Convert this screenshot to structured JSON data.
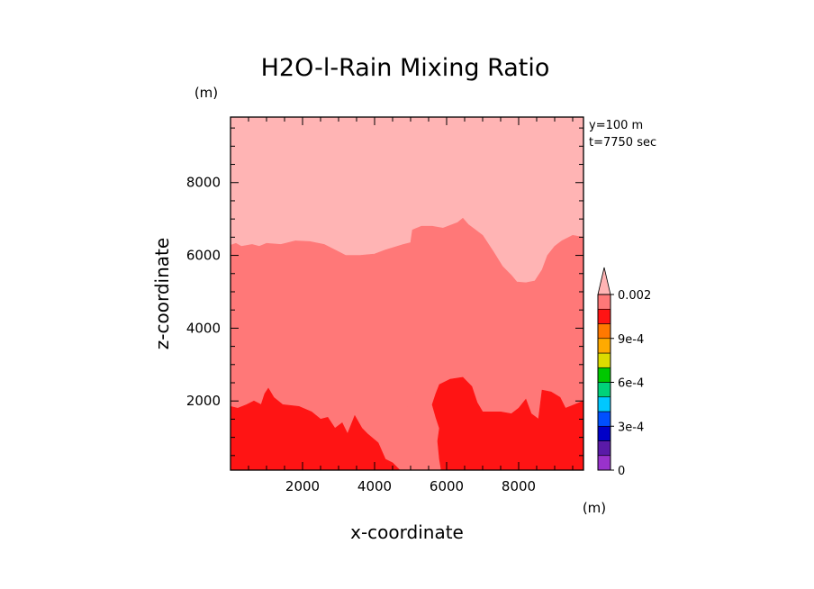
{
  "chart_data": {
    "type": "heatmap",
    "title": "H2O-l-Rain Mixing Ratio",
    "xlabel": "x-coordinate",
    "ylabel": "z-coordinate",
    "x_unit": "(m)",
    "y_unit": "(m)",
    "info": [
      "y=100 m",
      "t=7750 sec"
    ],
    "xlim": [
      0,
      9800
    ],
    "ylim": [
      100,
      9800
    ],
    "x_ticks": [
      2000,
      4000,
      6000,
      8000
    ],
    "y_ticks": [
      2000,
      4000,
      6000,
      8000
    ],
    "x_tick_labels": [
      "2000",
      "4000",
      "6000",
      "8000"
    ],
    "y_tick_labels": [
      "2000",
      "4000",
      "6000",
      "8000"
    ],
    "grid": false,
    "colorbar": {
      "position": "right",
      "levels": [
        0,
        0.0001,
        0.0002,
        0.0003,
        0.0004,
        0.0005,
        0.0006,
        0.0007,
        0.0008,
        0.0009,
        0.001,
        0.0015,
        0.002
      ],
      "colors": [
        "#9932cc",
        "#5a1aa8",
        "#0000c8",
        "#0050ff",
        "#00c8ff",
        "#00d27a",
        "#00c800",
        "#dcdc00",
        "#ffaa00",
        "#ff7800",
        "#ff1414",
        "#ff7878",
        "#ffb4b4"
      ],
      "tick_values": [
        0,
        0.0003,
        0.0006,
        0.0009,
        0.002
      ],
      "tick_labels": [
        "0",
        "3e-4",
        "6e-4",
        "9e-4",
        "0.002"
      ],
      "extend": "max"
    },
    "regions": [
      {
        "level": "> 0.002",
        "color": "#ffb4b4",
        "polygon": [
          [
            0,
            9800
          ],
          [
            9800,
            9800
          ],
          [
            9800,
            100
          ],
          [
            0,
            100
          ]
        ]
      },
      {
        "level": "0.0015 - 0.002",
        "color": "#ff7878",
        "polygon": [
          [
            0,
            6280
          ],
          [
            150,
            6330
          ],
          [
            300,
            6250
          ],
          [
            600,
            6300
          ],
          [
            800,
            6250
          ],
          [
            1000,
            6330
          ],
          [
            1400,
            6300
          ],
          [
            1800,
            6400
          ],
          [
            2200,
            6380
          ],
          [
            2600,
            6300
          ],
          [
            3000,
            6100
          ],
          [
            3200,
            6000
          ],
          [
            3600,
            6000
          ],
          [
            4000,
            6040
          ],
          [
            4300,
            6150
          ],
          [
            4800,
            6300
          ],
          [
            5000,
            6350
          ],
          [
            5050,
            6700
          ],
          [
            5300,
            6800
          ],
          [
            5600,
            6800
          ],
          [
            5900,
            6750
          ],
          [
            6300,
            6900
          ],
          [
            6450,
            7020
          ],
          [
            6600,
            6850
          ],
          [
            7000,
            6550
          ],
          [
            7300,
            6100
          ],
          [
            7550,
            5700
          ],
          [
            7800,
            5450
          ],
          [
            7950,
            5270
          ],
          [
            8200,
            5250
          ],
          [
            8450,
            5300
          ],
          [
            8650,
            5600
          ],
          [
            8800,
            6000
          ],
          [
            9000,
            6250
          ],
          [
            9200,
            6400
          ],
          [
            9500,
            6550
          ],
          [
            9800,
            6500
          ],
          [
            9800,
            100
          ],
          [
            0,
            100
          ]
        ]
      },
      {
        "level": "0.001 - 0.0015",
        "color": "#ff1414",
        "polygon": [
          [
            0,
            1850
          ],
          [
            200,
            1800
          ],
          [
            450,
            1900
          ],
          [
            650,
            2000
          ],
          [
            850,
            1900
          ],
          [
            950,
            2200
          ],
          [
            1050,
            2350
          ],
          [
            1200,
            2100
          ],
          [
            1450,
            1900
          ],
          [
            1900,
            1850
          ],
          [
            2250,
            1700
          ],
          [
            2500,
            1500
          ],
          [
            2700,
            1550
          ],
          [
            2900,
            1250
          ],
          [
            3100,
            1400
          ],
          [
            3250,
            1100
          ],
          [
            3450,
            1600
          ],
          [
            3650,
            1250
          ],
          [
            3800,
            1100
          ],
          [
            4100,
            850
          ],
          [
            4300,
            400
          ],
          [
            4500,
            300
          ],
          [
            4700,
            100
          ],
          [
            5850,
            100
          ],
          [
            5800,
            400
          ],
          [
            5750,
            900
          ],
          [
            5800,
            1250
          ],
          [
            5700,
            1550
          ],
          [
            5600,
            1900
          ],
          [
            5700,
            2200
          ],
          [
            5800,
            2450
          ],
          [
            6100,
            2600
          ],
          [
            6450,
            2650
          ],
          [
            6700,
            2400
          ],
          [
            6850,
            1950
          ],
          [
            7000,
            1700
          ],
          [
            7500,
            1700
          ],
          [
            7800,
            1650
          ],
          [
            8000,
            1800
          ],
          [
            8200,
            2050
          ],
          [
            8350,
            1650
          ],
          [
            8550,
            1500
          ],
          [
            8650,
            2300
          ],
          [
            8900,
            2250
          ],
          [
            9150,
            2100
          ],
          [
            9300,
            1800
          ],
          [
            9550,
            1900
          ],
          [
            9800,
            2000
          ],
          [
            9800,
            100
          ],
          [
            0,
            100
          ]
        ]
      },
      {
        "level": "0.0015 - 0.002",
        "color": "#ff7878",
        "polygon": [
          [
            4650,
            2450
          ],
          [
            4800,
            2550
          ],
          [
            5000,
            2550
          ],
          [
            5150,
            2300
          ],
          [
            5100,
            2050
          ],
          [
            4900,
            1850
          ],
          [
            4650,
            2100
          ]
        ]
      }
    ]
  }
}
